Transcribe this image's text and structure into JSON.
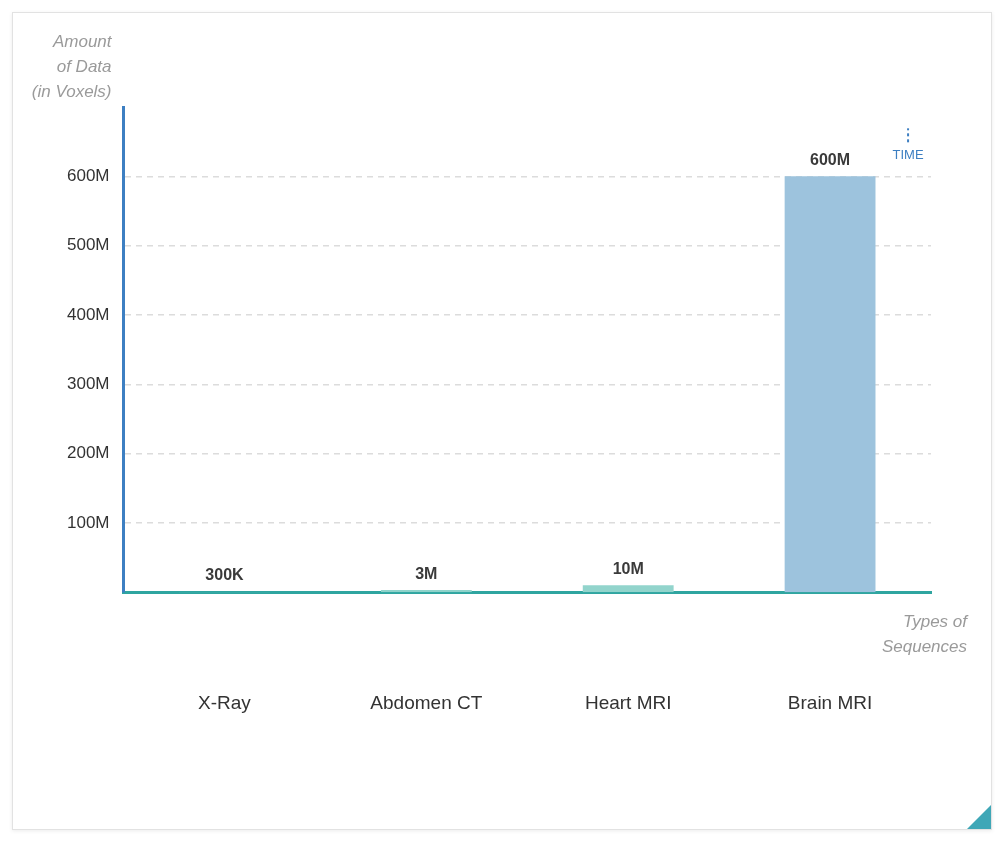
{
  "chart_data": {
    "type": "bar",
    "y_label": "Amount\nof Data\n(in Voxels)",
    "x_label": "Types of\nSequences",
    "categories": [
      "X-Ray",
      "Abdomen CT",
      "Heart MRI",
      "Brain MRI"
    ],
    "values": [
      300000,
      3000000,
      10000000,
      600000000
    ],
    "value_labels": [
      "300K",
      "3M",
      "10M",
      "600M"
    ],
    "colors": [
      "#8fd3cb",
      "#8fd3cb",
      "#92d4cc",
      "#9dc3dd"
    ],
    "ylim": [
      0,
      700000000
    ],
    "yticks": [
      {
        "value": 100000000,
        "label": "100M"
      },
      {
        "value": 200000000,
        "label": "200M"
      },
      {
        "value": 300000000,
        "label": "300M"
      },
      {
        "value": 400000000,
        "label": "400M"
      },
      {
        "value": 500000000,
        "label": "500M"
      },
      {
        "value": 600000000,
        "label": "600M"
      }
    ],
    "grid": true,
    "data_labels": true,
    "annotations": [
      "TIME"
    ]
  }
}
